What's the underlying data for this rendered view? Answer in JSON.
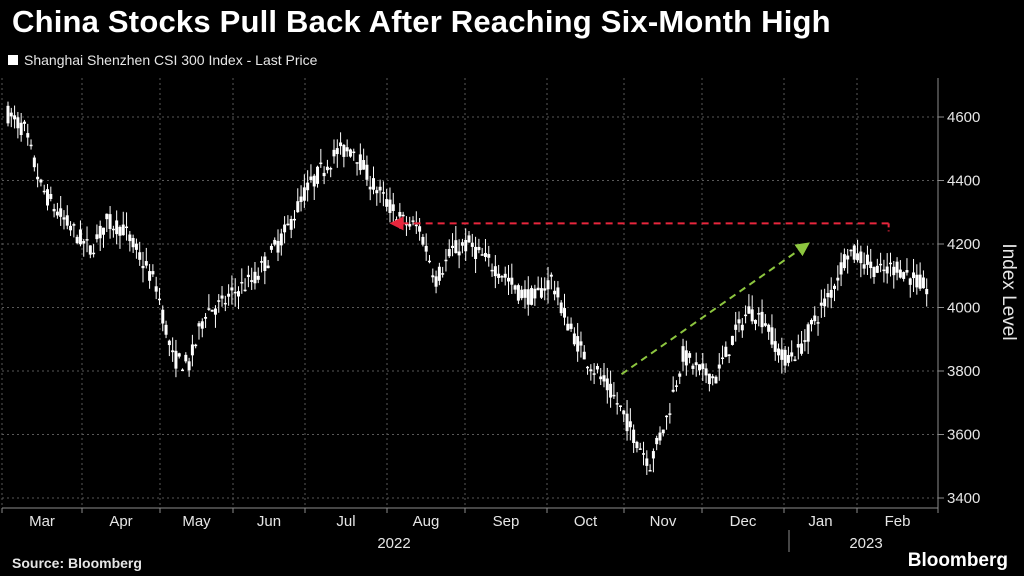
{
  "header": {
    "title": "China Stocks Pull Back After Reaching Six-Month High",
    "legend_label": "Shanghai Shenzhen CSI 300 Index - Last Price"
  },
  "footer": {
    "source": "Source: Bloomberg",
    "brand": "Bloomberg"
  },
  "chart_data": {
    "type": "line",
    "title": "China Stocks Pull Back After Reaching Six-Month High",
    "series_name": "Shanghai Shenzhen CSI 300 Index - Last Price",
    "ylabel": "Index Level",
    "xlabel": "",
    "ylim": [
      3400,
      4650
    ],
    "yticks": [
      3400,
      3600,
      3800,
      4000,
      4200,
      4400,
      4600
    ],
    "month_labels": [
      "Mar",
      "Apr",
      "May",
      "Jun",
      "Jul",
      "Aug",
      "Sep",
      "Oct",
      "Nov",
      "Dec",
      "Jan",
      "Feb"
    ],
    "year_labels": [
      "2022",
      "2023"
    ],
    "grid": true,
    "x_range_weeks": [
      0,
      53.5
    ],
    "values": [
      4610,
      4560,
      4380,
      4300,
      4240,
      4180,
      4270,
      4250,
      4160,
      4070,
      3840,
      3820,
      3990,
      4010,
      4060,
      4090,
      4170,
      4250,
      4360,
      4430,
      4490,
      4500,
      4400,
      4330,
      4270,
      4250,
      4090,
      4180,
      4200,
      4150,
      4110,
      4050,
      4030,
      4090,
      3950,
      3850,
      3780,
      3700,
      3600,
      3510,
      3650,
      3850,
      3800,
      3780,
      3900,
      3990,
      3960,
      3840,
      3860,
      3960,
      4050,
      4180,
      4150,
      4110,
      4130,
      4090,
      4050
    ],
    "annotations": [
      {
        "type": "arrow",
        "style": "dashed",
        "color": "#e8263d",
        "from": {
          "x": 51.1,
          "y": 4265
        },
        "to": {
          "x": 22.3,
          "y": 4265
        }
      },
      {
        "type": "arrow",
        "style": "dashed",
        "color": "#8dc63f",
        "from": {
          "x": 35.6,
          "y": 3790
        },
        "to": {
          "x": 46.4,
          "y": 4200
        }
      }
    ],
    "colors": {
      "line": "#ffffff",
      "grid": "#595959",
      "background": "#000000"
    }
  }
}
